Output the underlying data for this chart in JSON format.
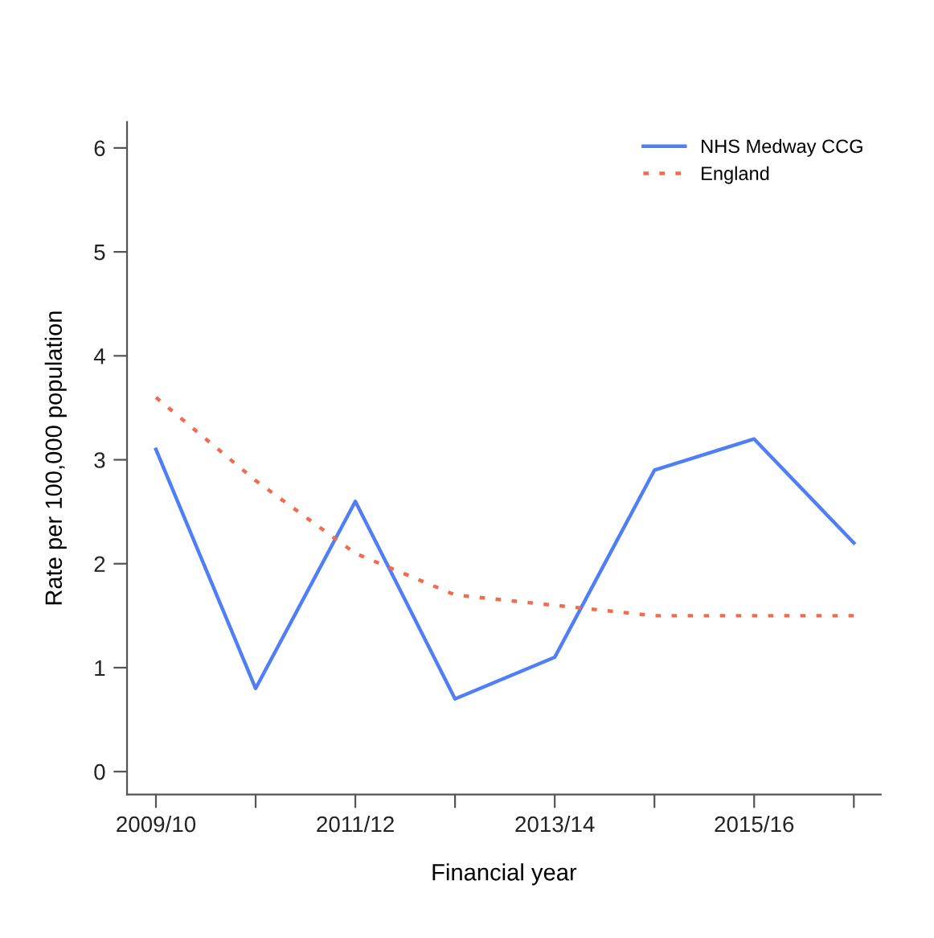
{
  "chart_data": {
    "type": "line",
    "xlabel": "Financial year",
    "ylabel": "Rate per 100,000 population",
    "categories": [
      "2009/10",
      null,
      "2011/12",
      null,
      "2013/14",
      null,
      "2015/16",
      null
    ],
    "series": [
      {
        "name": "NHS Medway CCG",
        "color": "#4f7ef7",
        "line_style": "solid",
        "values": [
          3.1,
          0.8,
          2.6,
          0.7,
          1.1,
          2.9,
          3.2,
          2.2
        ]
      },
      {
        "name": "England",
        "color": "#f26b4f",
        "line_style": "dotted",
        "values": [
          3.6,
          2.8,
          2.1,
          1.7,
          1.6,
          1.5,
          1.5,
          1.5
        ]
      }
    ],
    "ylim": [
      -0.22,
      6.25
    ],
    "yticks": [
      0,
      1,
      2,
      3,
      4,
      5,
      6
    ],
    "grid": false,
    "legend": "top right",
    "marker": "none"
  }
}
